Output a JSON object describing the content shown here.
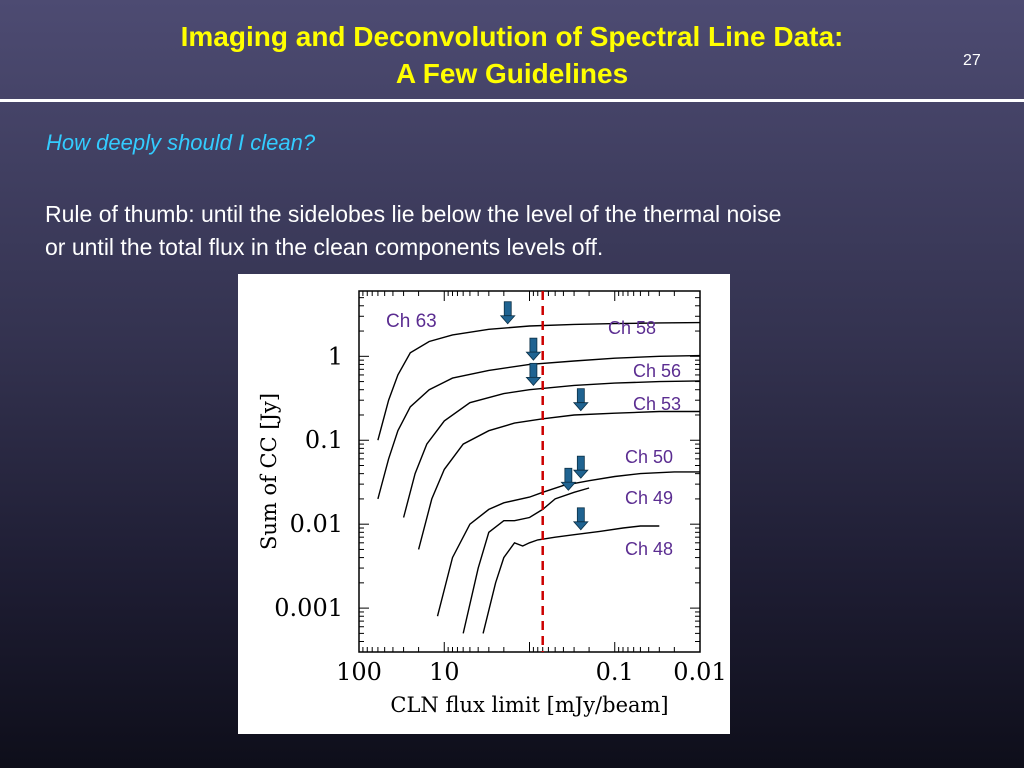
{
  "slide": {
    "title_line1": "Imaging and Deconvolution of Spectral Line Data:",
    "title_line2": "A Few Guidelines",
    "page_number": "27",
    "question": "How deeply should I clean?",
    "body_line1": "Rule of thumb: until the sidelobes lie below the level of the thermal noise",
    "body_line2": "or until the total flux in the clean components levels off."
  },
  "colors": {
    "title": "#ffff00",
    "question": "#33ccff",
    "channel_labels": "#5b2d91",
    "threshold_line": "#cc0000",
    "arrows": "#1f6391"
  },
  "chart_data": {
    "type": "line",
    "xlabel": "CLN flux limit [mJy/beam]",
    "ylabel": "Sum of CC [Jy]",
    "x_scale": "log",
    "x_reversed": true,
    "y_scale": "log",
    "xlim": [
      100,
      0.01
    ],
    "ylim": [
      0.0003,
      6
    ],
    "x_ticks": [
      100,
      10,
      1,
      0.1,
      0.01
    ],
    "x_tick_labels": [
      "100",
      "10",
      "",
      "0.1",
      "0.01"
    ],
    "y_ticks": [
      1,
      0.1,
      0.01,
      0.001
    ],
    "y_tick_labels": [
      "1",
      "0.1",
      "0.01",
      "0.001"
    ],
    "threshold_x": 0.7,
    "series": [
      {
        "name": "Ch 63",
        "points": [
          [
            60,
            0.1
          ],
          [
            45,
            0.3
          ],
          [
            35,
            0.6
          ],
          [
            25,
            1.1
          ],
          [
            15,
            1.5
          ],
          [
            8,
            1.8
          ],
          [
            3,
            2.1
          ],
          [
            1,
            2.3
          ],
          [
            0.3,
            2.4
          ],
          [
            0.1,
            2.45
          ],
          [
            0.03,
            2.5
          ],
          [
            0.01,
            2.52
          ]
        ],
        "arrow_x": 1.8
      },
      {
        "name": "Ch 58",
        "points": [
          [
            60,
            0.02
          ],
          [
            45,
            0.06
          ],
          [
            35,
            0.13
          ],
          [
            25,
            0.25
          ],
          [
            15,
            0.4
          ],
          [
            8,
            0.55
          ],
          [
            3,
            0.68
          ],
          [
            1,
            0.8
          ],
          [
            0.3,
            0.88
          ],
          [
            0.1,
            0.95
          ],
          [
            0.03,
            1.0
          ],
          [
            0.01,
            1.02
          ]
        ],
        "arrow_x": 0.9
      },
      {
        "name": "Ch 56",
        "points": [
          [
            30,
            0.012
          ],
          [
            22,
            0.04
          ],
          [
            16,
            0.09
          ],
          [
            10,
            0.17
          ],
          [
            5,
            0.28
          ],
          [
            2,
            0.36
          ],
          [
            1,
            0.4
          ],
          [
            0.3,
            0.45
          ],
          [
            0.1,
            0.48
          ],
          [
            0.03,
            0.5
          ],
          [
            0.01,
            0.51
          ]
        ],
        "arrow_x": 0.9
      },
      {
        "name": "Ch 53",
        "points": [
          [
            20,
            0.005
          ],
          [
            14,
            0.02
          ],
          [
            10,
            0.045
          ],
          [
            6,
            0.09
          ],
          [
            3,
            0.13
          ],
          [
            1.5,
            0.16
          ],
          [
            0.7,
            0.18
          ],
          [
            0.3,
            0.2
          ],
          [
            0.1,
            0.21
          ],
          [
            0.03,
            0.22
          ],
          [
            0.01,
            0.22
          ]
        ],
        "arrow_x": 0.25
      },
      {
        "name": "Ch 50",
        "points": [
          [
            12,
            0.0008
          ],
          [
            8,
            0.004
          ],
          [
            5,
            0.01
          ],
          [
            3,
            0.015
          ],
          [
            2,
            0.018
          ],
          [
            1,
            0.021
          ],
          [
            0.7,
            0.024
          ],
          [
            0.4,
            0.029
          ],
          [
            0.2,
            0.033
          ],
          [
            0.1,
            0.037
          ],
          [
            0.05,
            0.04
          ],
          [
            0.02,
            0.042
          ],
          [
            0.01,
            0.042
          ]
        ],
        "arrow_x": 0.25
      },
      {
        "name": "Ch 49",
        "points": [
          [
            6,
            0.0005
          ],
          [
            4,
            0.003
          ],
          [
            3,
            0.008
          ],
          [
            2,
            0.011
          ],
          [
            1.5,
            0.011
          ],
          [
            1,
            0.012
          ],
          [
            0.7,
            0.015
          ],
          [
            0.5,
            0.02
          ],
          [
            0.3,
            0.024
          ],
          [
            0.2,
            0.027
          ]
        ],
        "arrow_x": 0.35
      },
      {
        "name": "Ch 48",
        "points": [
          [
            3.5,
            0.0005
          ],
          [
            2.5,
            0.002
          ],
          [
            2,
            0.004
          ],
          [
            1.5,
            0.006
          ],
          [
            1.2,
            0.0055
          ],
          [
            1,
            0.006
          ],
          [
            0.8,
            0.0065
          ],
          [
            0.5,
            0.007
          ],
          [
            0.3,
            0.0075
          ],
          [
            0.15,
            0.0082
          ],
          [
            0.08,
            0.009
          ],
          [
            0.05,
            0.0095
          ],
          [
            0.03,
            0.0095
          ]
        ],
        "arrow_x": 0.25
      }
    ]
  }
}
